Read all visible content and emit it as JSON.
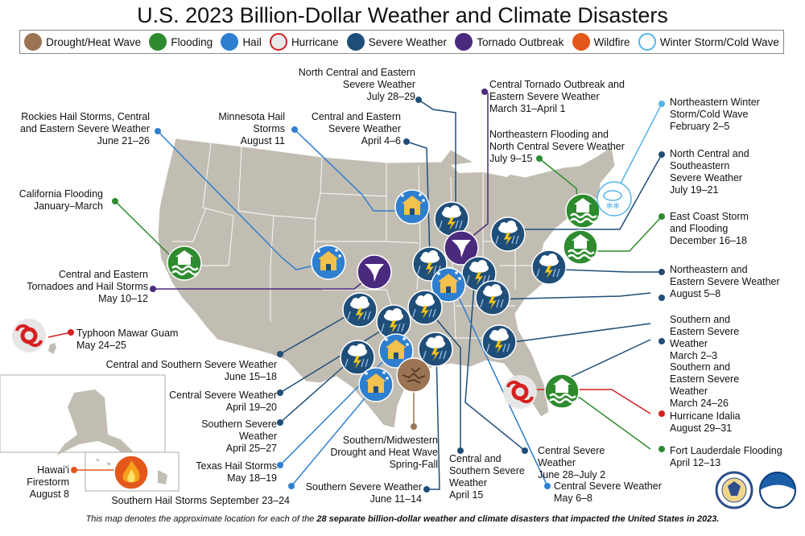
{
  "title": "U.S. 2023 Billion-Dollar Weather and Climate Disasters",
  "legend": [
    {
      "label": "Drought/Heat Wave",
      "icon": "drought-icon",
      "color": "#9b7453"
    },
    {
      "label": "Flooding",
      "icon": "flooding-icon",
      "color": "#2e8b2e"
    },
    {
      "label": "Hail",
      "icon": "hail-icon",
      "color": "#2f7fd0"
    },
    {
      "label": "Hurricane",
      "icon": "hurricane-icon",
      "color": "#d62020"
    },
    {
      "label": "Severe Weather",
      "icon": "severe-weather-icon",
      "color": "#1f4e79"
    },
    {
      "label": "Tornado Outbreak",
      "icon": "tornado-icon",
      "color": "#4b2a7e"
    },
    {
      "label": "Wildfire",
      "icon": "wildfire-icon",
      "color": "#e4571b"
    },
    {
      "label": "Winter Storm/Cold Wave",
      "icon": "winter-storm-icon",
      "color": "#56b4e9"
    }
  ],
  "events": [
    {
      "title": "North Central and Eastern Severe Weather",
      "date": "July 28–29"
    },
    {
      "title": "Central Tornado Outbreak and Eastern Severe Weather",
      "date": "March 31–April 1"
    },
    {
      "title": "Rockies Hail Storms, Central and Eastern Severe Weather",
      "date": "June 21–26"
    },
    {
      "title": "Minnesota Hail Storms",
      "date": "August 11"
    },
    {
      "title": "Central and Eastern Severe Weather",
      "date": "April 4–6"
    },
    {
      "title": "Northeastern Flooding and North Central Severe Weather",
      "date": "July 9–15"
    },
    {
      "title": "Northeastern Winter Storm/Cold Wave",
      "date": "February 2–5"
    },
    {
      "title": "North Central and Southeastern Severe Weather",
      "date": "July 19–21"
    },
    {
      "title": "California Flooding",
      "date": "January–March"
    },
    {
      "title": "East Coast Storm and Flooding",
      "date": "December 16–18"
    },
    {
      "title": "Central and Eastern Tornadoes and Hail Storms",
      "date": "May 10–12"
    },
    {
      "title": "Northeastern and Eastern Severe Weather",
      "date": "August 5–8"
    },
    {
      "title": "Southern and Eastern Severe Weather",
      "date": "March 2–3"
    },
    {
      "title": "Typhoon Mawar Guam",
      "date": "May 24–25"
    },
    {
      "title": "Central and Southern Severe Weather",
      "date": "June 15–18"
    },
    {
      "title": "Southern and Eastern Severe Weather",
      "date": "March 24–26"
    },
    {
      "title": "Central Severe Weather",
      "date": "April 19–20"
    },
    {
      "title": "Hurricane Idalia",
      "date": "August 29–31"
    },
    {
      "title": "Southern Severe Weather",
      "date": "April 25–27"
    },
    {
      "title": "Fort Lauderdale Flooding",
      "date": "April 12–13"
    },
    {
      "title": "Southern/Midwestern Drought and Heat Wave",
      "date": "Spring-Fall"
    },
    {
      "title": "Central and Southern Severe Weather",
      "date": "April 15"
    },
    {
      "title": "Central Severe Weather",
      "date": "June 28–July 2"
    },
    {
      "title": "Texas Hail Storms",
      "date": "May 18–19"
    },
    {
      "title": "Hawai'i Firestorm",
      "date": "August 8"
    },
    {
      "title": "Central Severe Weather",
      "date": "May 6–8"
    },
    {
      "title": "Southern Severe Weather",
      "date": "June 11–14"
    },
    {
      "title": "Southern Hail Storms",
      "date": "September 23–24"
    }
  ],
  "footer": {
    "prefix": "This map denotes the approximate location for each of the ",
    "bold": "28 separate billion-dollar weather and climate disasters that impacted the United States in 2023.",
    "suffix": ""
  },
  "logos": [
    "Department of Commerce seal",
    "NOAA"
  ]
}
